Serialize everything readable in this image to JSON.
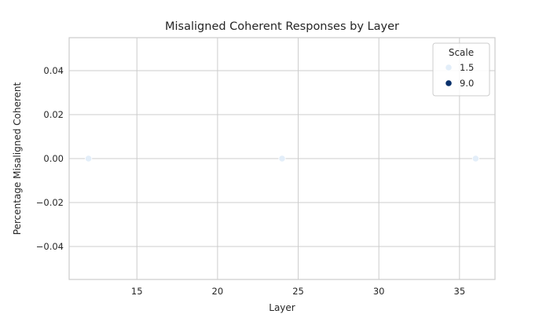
{
  "chart_data": {
    "type": "scatter",
    "title": "Misaligned Coherent Responses by Layer",
    "xlabel": "Layer",
    "ylabel": "Percentage Misaligned Coherent",
    "xlim": [
      10.8,
      37.2
    ],
    "ylim": [
      -0.055,
      0.055
    ],
    "xticks": [
      15,
      20,
      25,
      30,
      35
    ],
    "yticks": [
      -0.04,
      -0.02,
      0.0,
      0.02,
      0.04
    ],
    "ytick_labels": [
      "−0.04",
      "−0.02",
      "0.00",
      "0.02",
      "0.04"
    ],
    "grid": true,
    "legend": {
      "title": "Scale",
      "position": "top-right",
      "entries": [
        {
          "label": "1.5",
          "color": "#e3eef9"
        },
        {
          "label": "9.0",
          "color": "#08306b"
        }
      ]
    },
    "series": [
      {
        "name": "1.5",
        "color": "#e3eef9",
        "points": [
          {
            "x": 12,
            "y": 0.0
          },
          {
            "x": 24,
            "y": 0.0
          },
          {
            "x": 36,
            "y": 0.0
          }
        ]
      }
    ]
  }
}
